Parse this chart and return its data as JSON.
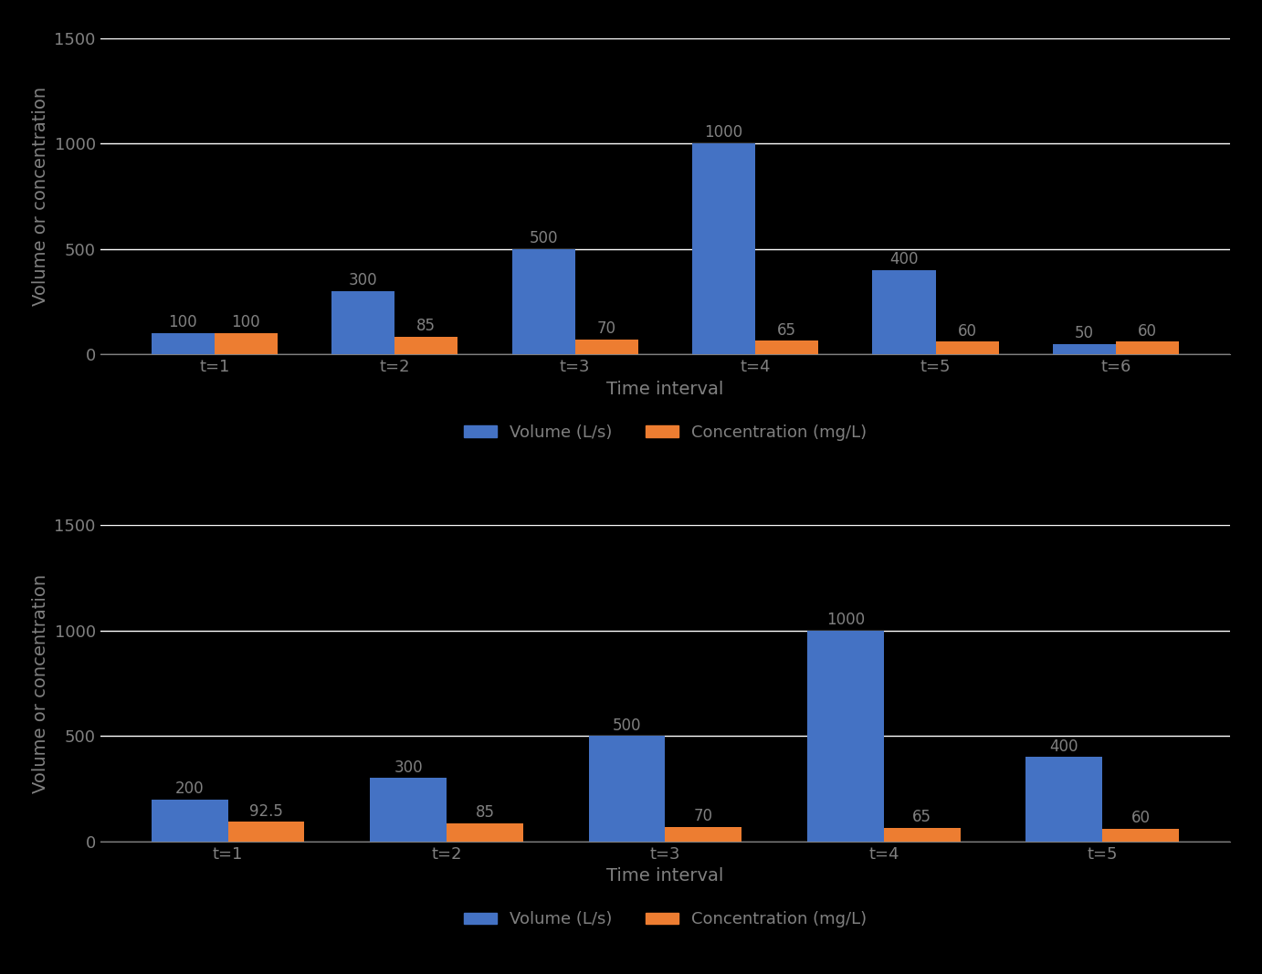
{
  "chart1": {
    "categories": [
      "t=1",
      "t=2",
      "t=3",
      "t=4",
      "t=5",
      "t=6"
    ],
    "volumes": [
      100,
      300,
      500,
      1000,
      400,
      50
    ],
    "concentrations": [
      100,
      85,
      70,
      65,
      60,
      60
    ],
    "xlabel": "Time interval",
    "ylabel": "Volume or concentration"
  },
  "chart2": {
    "categories": [
      "t=1",
      "t=2",
      "t=3",
      "t=4",
      "t=5"
    ],
    "volumes": [
      200,
      300,
      500,
      1000,
      400
    ],
    "concentrations": [
      92.5,
      85,
      70,
      65,
      60
    ],
    "xlabel": "Time interval",
    "ylabel": "Volume or concentration"
  },
  "ylim": [
    0,
    1500
  ],
  "yticks": [
    0,
    500,
    1000,
    1500
  ],
  "bar_color_volume": "#4472C4",
  "bar_color_conc": "#ED7D31",
  "legend_volume": "Volume (L/s)",
  "legend_conc": "Concentration (mg/L)",
  "bar_width": 0.35,
  "tick_fontsize": 13,
  "axis_label_fontsize": 14,
  "legend_fontsize": 13,
  "annotation_fontsize": 12,
  "background_color": "#000000",
  "plot_bg_color": "#000000",
  "text_color": "#808080",
  "grid_color": "#FFFFFF",
  "spine_color": "#808080"
}
